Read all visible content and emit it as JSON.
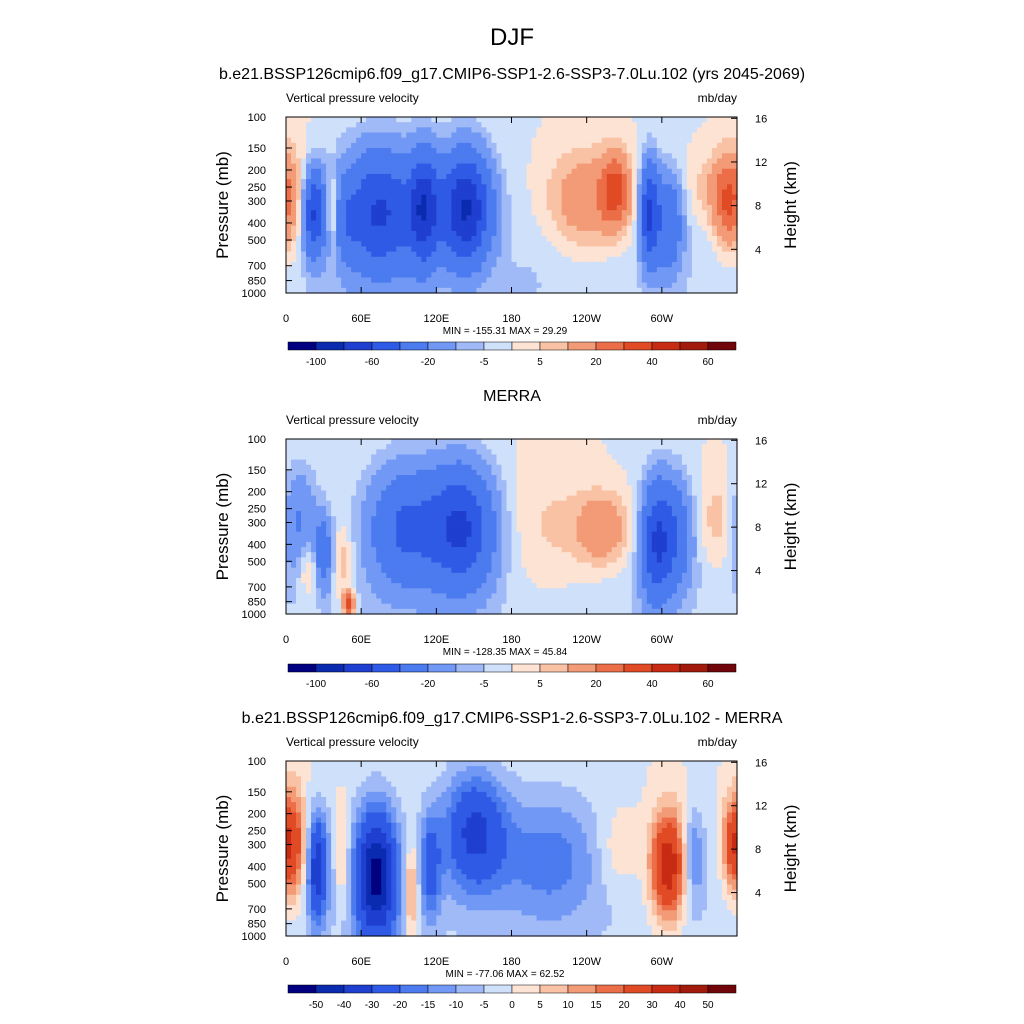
{
  "page_title": "DJF",
  "colors": {
    "blue_scale": [
      "#000080",
      "#0a2bb0",
      "#1e3fd0",
      "#2f5ae5",
      "#4b7bef",
      "#7098f4",
      "#a0baf7",
      "#cfe0fb"
    ],
    "red_scale": [
      "#fde3d3",
      "#f9c2a4",
      "#f29b76",
      "#ec6e48",
      "#e04a25",
      "#c72b13",
      "#a11a0c",
      "#70050a"
    ]
  },
  "chart_data": [
    {
      "type": "heatmap",
      "title": "b.e21.BSSP126cmip6.f09_g17.CMIP6-SSP1-2.6-SSP3-7.0Lu.102 (yrs 2045-2069)",
      "left_string": "Vertical pressure velocity",
      "right_string": "mb/day",
      "xlabel": "",
      "ylabel": "Pressure (mb)",
      "y2label": "Height (km)",
      "x_ticks": [
        "0",
        "60E",
        "120E",
        "180",
        "120W",
        "60W"
      ],
      "x_tick_values": [
        0,
        60,
        120,
        180,
        240,
        300
      ],
      "xlim": [
        0,
        360
      ],
      "y_ticks": [
        "100",
        "150",
        "200",
        "250",
        "300",
        "400",
        "500",
        "700",
        "850",
        "1000"
      ],
      "y_tick_values": [
        100,
        150,
        200,
        250,
        300,
        400,
        500,
        700,
        850,
        1000
      ],
      "ylim": [
        1000,
        100
      ],
      "y_scale": "log",
      "y2_ticks": [
        "16",
        "12",
        "8",
        "4"
      ],
      "y2_tick_values": [
        16,
        12,
        8,
        4
      ],
      "min_max_text": "MIN = -155.31  MAX =  29.29",
      "colorbar_labels": [
        "-100",
        "-60",
        "-20",
        "-5",
        "5",
        "20",
        "40",
        "60"
      ],
      "features": [
        {
          "lon": 5,
          "p": 300,
          "value": 15,
          "w": 12,
          "h": 0.9
        },
        {
          "lon": 22,
          "p": 350,
          "value": -60,
          "w": 6,
          "h": 0.7
        },
        {
          "lon": 37,
          "p": 350,
          "value": 20,
          "w": 3,
          "h": 0.6
        },
        {
          "lon": 48,
          "p": 400,
          "value": -12,
          "w": 5,
          "h": 0.6
        },
        {
          "lon": 75,
          "p": 350,
          "value": -60,
          "w": 22,
          "h": 1.0
        },
        {
          "lon": 110,
          "p": 330,
          "value": -60,
          "w": 8,
          "h": 0.9
        },
        {
          "lon": 143,
          "p": 330,
          "value": -80,
          "w": 14,
          "h": 0.9
        },
        {
          "lon": 190,
          "p": 900,
          "value": -3,
          "w": 10,
          "h": 0.3
        },
        {
          "lon": 240,
          "p": 300,
          "value": 20,
          "w": 22,
          "h": 0.8
        },
        {
          "lon": 263,
          "p": 260,
          "value": 30,
          "w": 8,
          "h": 0.6
        },
        {
          "lon": 290,
          "p": 350,
          "value": -60,
          "w": 5,
          "h": 0.8
        },
        {
          "lon": 305,
          "p": 400,
          "value": -35,
          "w": 8,
          "h": 0.8
        },
        {
          "lon": 335,
          "p": 260,
          "value": 8,
          "w": 12,
          "h": 0.6
        },
        {
          "lon": 352,
          "p": 300,
          "value": 25,
          "w": 8,
          "h": 0.7
        }
      ]
    },
    {
      "type": "heatmap",
      "title": "MERRA",
      "left_string": "Vertical pressure velocity",
      "right_string": "mb/day",
      "xlabel": "",
      "ylabel": "Pressure (mb)",
      "y2label": "Height (km)",
      "x_ticks": [
        "0",
        "60E",
        "120E",
        "180",
        "120W",
        "60W"
      ],
      "x_tick_values": [
        0,
        60,
        120,
        180,
        240,
        300
      ],
      "xlim": [
        0,
        360
      ],
      "y_ticks": [
        "100",
        "150",
        "200",
        "250",
        "300",
        "400",
        "500",
        "700",
        "850",
        "1000"
      ],
      "y_tick_values": [
        100,
        150,
        200,
        250,
        300,
        400,
        500,
        700,
        850,
        1000
      ],
      "ylim": [
        1000,
        100
      ],
      "y_scale": "log",
      "y2_ticks": [
        "16",
        "12",
        "8",
        "4"
      ],
      "y2_tick_values": [
        16,
        12,
        8,
        4
      ],
      "min_max_text": "MIN = -128.35  MAX =  45.84",
      "colorbar_labels": [
        "-100",
        "-60",
        "-20",
        "-5",
        "5",
        "20",
        "40",
        "60"
      ],
      "features": [
        {
          "lon": 10,
          "p": 300,
          "value": -20,
          "w": 10,
          "h": 0.9
        },
        {
          "lon": 18,
          "p": 550,
          "value": 15,
          "w": 6,
          "h": 0.5
        },
        {
          "lon": 30,
          "p": 450,
          "value": -30,
          "w": 5,
          "h": 0.6
        },
        {
          "lon": 45,
          "p": 500,
          "value": 12,
          "w": 6,
          "h": 0.6
        },
        {
          "lon": 50,
          "p": 880,
          "value": 40,
          "w": 3,
          "h": 0.2
        },
        {
          "lon": 95,
          "p": 320,
          "value": -40,
          "w": 20,
          "h": 1.0
        },
        {
          "lon": 140,
          "p": 320,
          "value": -60,
          "w": 18,
          "h": 1.0
        },
        {
          "lon": 210,
          "p": 350,
          "value": 8,
          "w": 25,
          "h": 1.1
        },
        {
          "lon": 253,
          "p": 330,
          "value": 20,
          "w": 15,
          "h": 0.6
        },
        {
          "lon": 295,
          "p": 400,
          "value": -50,
          "w": 8,
          "h": 1.0
        },
        {
          "lon": 310,
          "p": 350,
          "value": -35,
          "w": 10,
          "h": 0.9
        },
        {
          "lon": 345,
          "p": 300,
          "value": 10,
          "w": 12,
          "h": 0.8
        }
      ]
    },
    {
      "type": "heatmap",
      "title": "b.e21.BSSP126cmip6.f09_g17.CMIP6-SSP1-2.6-SSP3-7.0Lu.102 - MERRA",
      "left_string": "Vertical pressure velocity",
      "right_string": "mb/day",
      "xlabel": "",
      "ylabel": "Pressure (mb)",
      "y2label": "Height (km)",
      "x_ticks": [
        "0",
        "60E",
        "120E",
        "180",
        "120W",
        "60W"
      ],
      "x_tick_values": [
        0,
        60,
        120,
        180,
        240,
        300
      ],
      "xlim": [
        0,
        360
      ],
      "y_ticks": [
        "100",
        "150",
        "200",
        "250",
        "300",
        "400",
        "500",
        "700",
        "850",
        "1000"
      ],
      "y_tick_values": [
        100,
        150,
        200,
        250,
        300,
        400,
        500,
        700,
        850,
        1000
      ],
      "ylim": [
        1000,
        100
      ],
      "y_scale": "log",
      "y2_ticks": [
        "16",
        "12",
        "8",
        "4"
      ],
      "y2_tick_values": [
        16,
        12,
        8,
        4
      ],
      "min_max_text": "MIN = -77.06  MAX =  62.52",
      "colorbar_labels": [
        "-50",
        "-40",
        "-30",
        "-20",
        "-15",
        "-10",
        "-5",
        "0",
        "5",
        "10",
        "15",
        "20",
        "30",
        "40",
        "50"
      ],
      "features": [
        {
          "lon": 5,
          "p": 300,
          "value": 30,
          "w": 8,
          "h": 0.9
        },
        {
          "lon": 25,
          "p": 400,
          "value": -35,
          "w": 6,
          "h": 0.9
        },
        {
          "lon": 45,
          "p": 350,
          "value": 12,
          "w": 4,
          "h": 0.8
        },
        {
          "lon": 72,
          "p": 450,
          "value": -50,
          "w": 12,
          "h": 1.1
        },
        {
          "lon": 100,
          "p": 550,
          "value": 20,
          "w": 4,
          "h": 0.7
        },
        {
          "lon": 115,
          "p": 400,
          "value": -20,
          "w": 6,
          "h": 0.9
        },
        {
          "lon": 150,
          "p": 250,
          "value": -30,
          "w": 18,
          "h": 1.0
        },
        {
          "lon": 210,
          "p": 350,
          "value": -15,
          "w": 30,
          "h": 1.1
        },
        {
          "lon": 265,
          "p": 330,
          "value": 8,
          "w": 12,
          "h": 0.7
        },
        {
          "lon": 305,
          "p": 400,
          "value": 40,
          "w": 10,
          "h": 0.9
        },
        {
          "lon": 325,
          "p": 350,
          "value": -15,
          "w": 6,
          "h": 0.8
        },
        {
          "lon": 355,
          "p": 300,
          "value": 15,
          "w": 6,
          "h": 0.7
        }
      ]
    }
  ]
}
